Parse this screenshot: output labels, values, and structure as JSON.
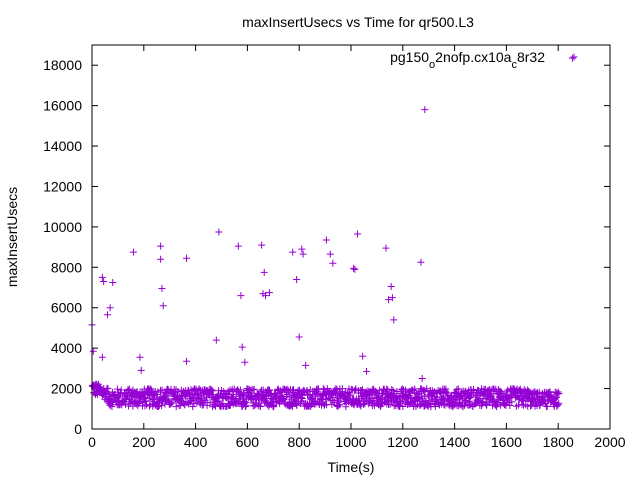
{
  "chart_data": {
    "type": "scatter",
    "title": "maxInsertUsecs vs Time for qr500.L3",
    "xlabel": "Time(s)",
    "ylabel": "maxInsertUsecs",
    "xlim": [
      0,
      2000
    ],
    "ylim": [
      0,
      19000
    ],
    "xticks": [
      0,
      200,
      400,
      600,
      800,
      1000,
      1200,
      1400,
      1600,
      1800,
      2000
    ],
    "yticks": [
      0,
      2000,
      4000,
      6000,
      8000,
      10000,
      12000,
      14000,
      16000,
      18000
    ],
    "grid": false,
    "legend_position": "top-right",
    "marker": "plus",
    "series": [
      {
        "name": "pg150_o2nofp.cx10a_c8r32",
        "name_parts": [
          {
            "text": "pg150",
            "sub": false
          },
          {
            "text": "o",
            "sub": true
          },
          {
            "text": "2nofp.cx10a",
            "sub": false
          },
          {
            "text": "c",
            "sub": true
          },
          {
            "text": "8r32",
            "sub": false
          }
        ],
        "color": "#9400d3",
        "outliers": [
          [
            0,
            5150
          ],
          [
            5,
            3850
          ],
          [
            40,
            3550
          ],
          [
            40,
            7500
          ],
          [
            45,
            7300
          ],
          [
            60,
            5650
          ],
          [
            70,
            6000
          ],
          [
            80,
            7250
          ],
          [
            160,
            8750
          ],
          [
            185,
            3550
          ],
          [
            190,
            2900
          ],
          [
            265,
            9050
          ],
          [
            265,
            8400
          ],
          [
            270,
            6950
          ],
          [
            275,
            6100
          ],
          [
            365,
            8450
          ],
          [
            365,
            3350
          ],
          [
            480,
            4400
          ],
          [
            490,
            9750
          ],
          [
            565,
            9050
          ],
          [
            575,
            6600
          ],
          [
            580,
            4050
          ],
          [
            590,
            3300
          ],
          [
            655,
            9100
          ],
          [
            660,
            6700
          ],
          [
            665,
            7750
          ],
          [
            670,
            6600
          ],
          [
            685,
            6750
          ],
          [
            775,
            8750
          ],
          [
            790,
            7400
          ],
          [
            800,
            4550
          ],
          [
            810,
            8900
          ],
          [
            815,
            8650
          ],
          [
            825,
            3150
          ],
          [
            905,
            9350
          ],
          [
            920,
            8650
          ],
          [
            930,
            8200
          ],
          [
            1010,
            7950
          ],
          [
            1015,
            7900
          ],
          [
            1025,
            9650
          ],
          [
            1045,
            3600
          ],
          [
            1060,
            2850
          ],
          [
            1135,
            8950
          ],
          [
            1145,
            6400
          ],
          [
            1155,
            7050
          ],
          [
            1160,
            6500
          ],
          [
            1165,
            5400
          ],
          [
            1270,
            8250
          ],
          [
            1275,
            2500
          ],
          [
            1285,
            15800
          ],
          [
            1855,
            18350
          ]
        ],
        "dense_band": {
          "x_range": [
            0,
            1800
          ],
          "typical_min": 1100,
          "typical_max": 2000,
          "center": 1500,
          "early_peak": [
            0,
            2350
          ]
        }
      }
    ]
  }
}
